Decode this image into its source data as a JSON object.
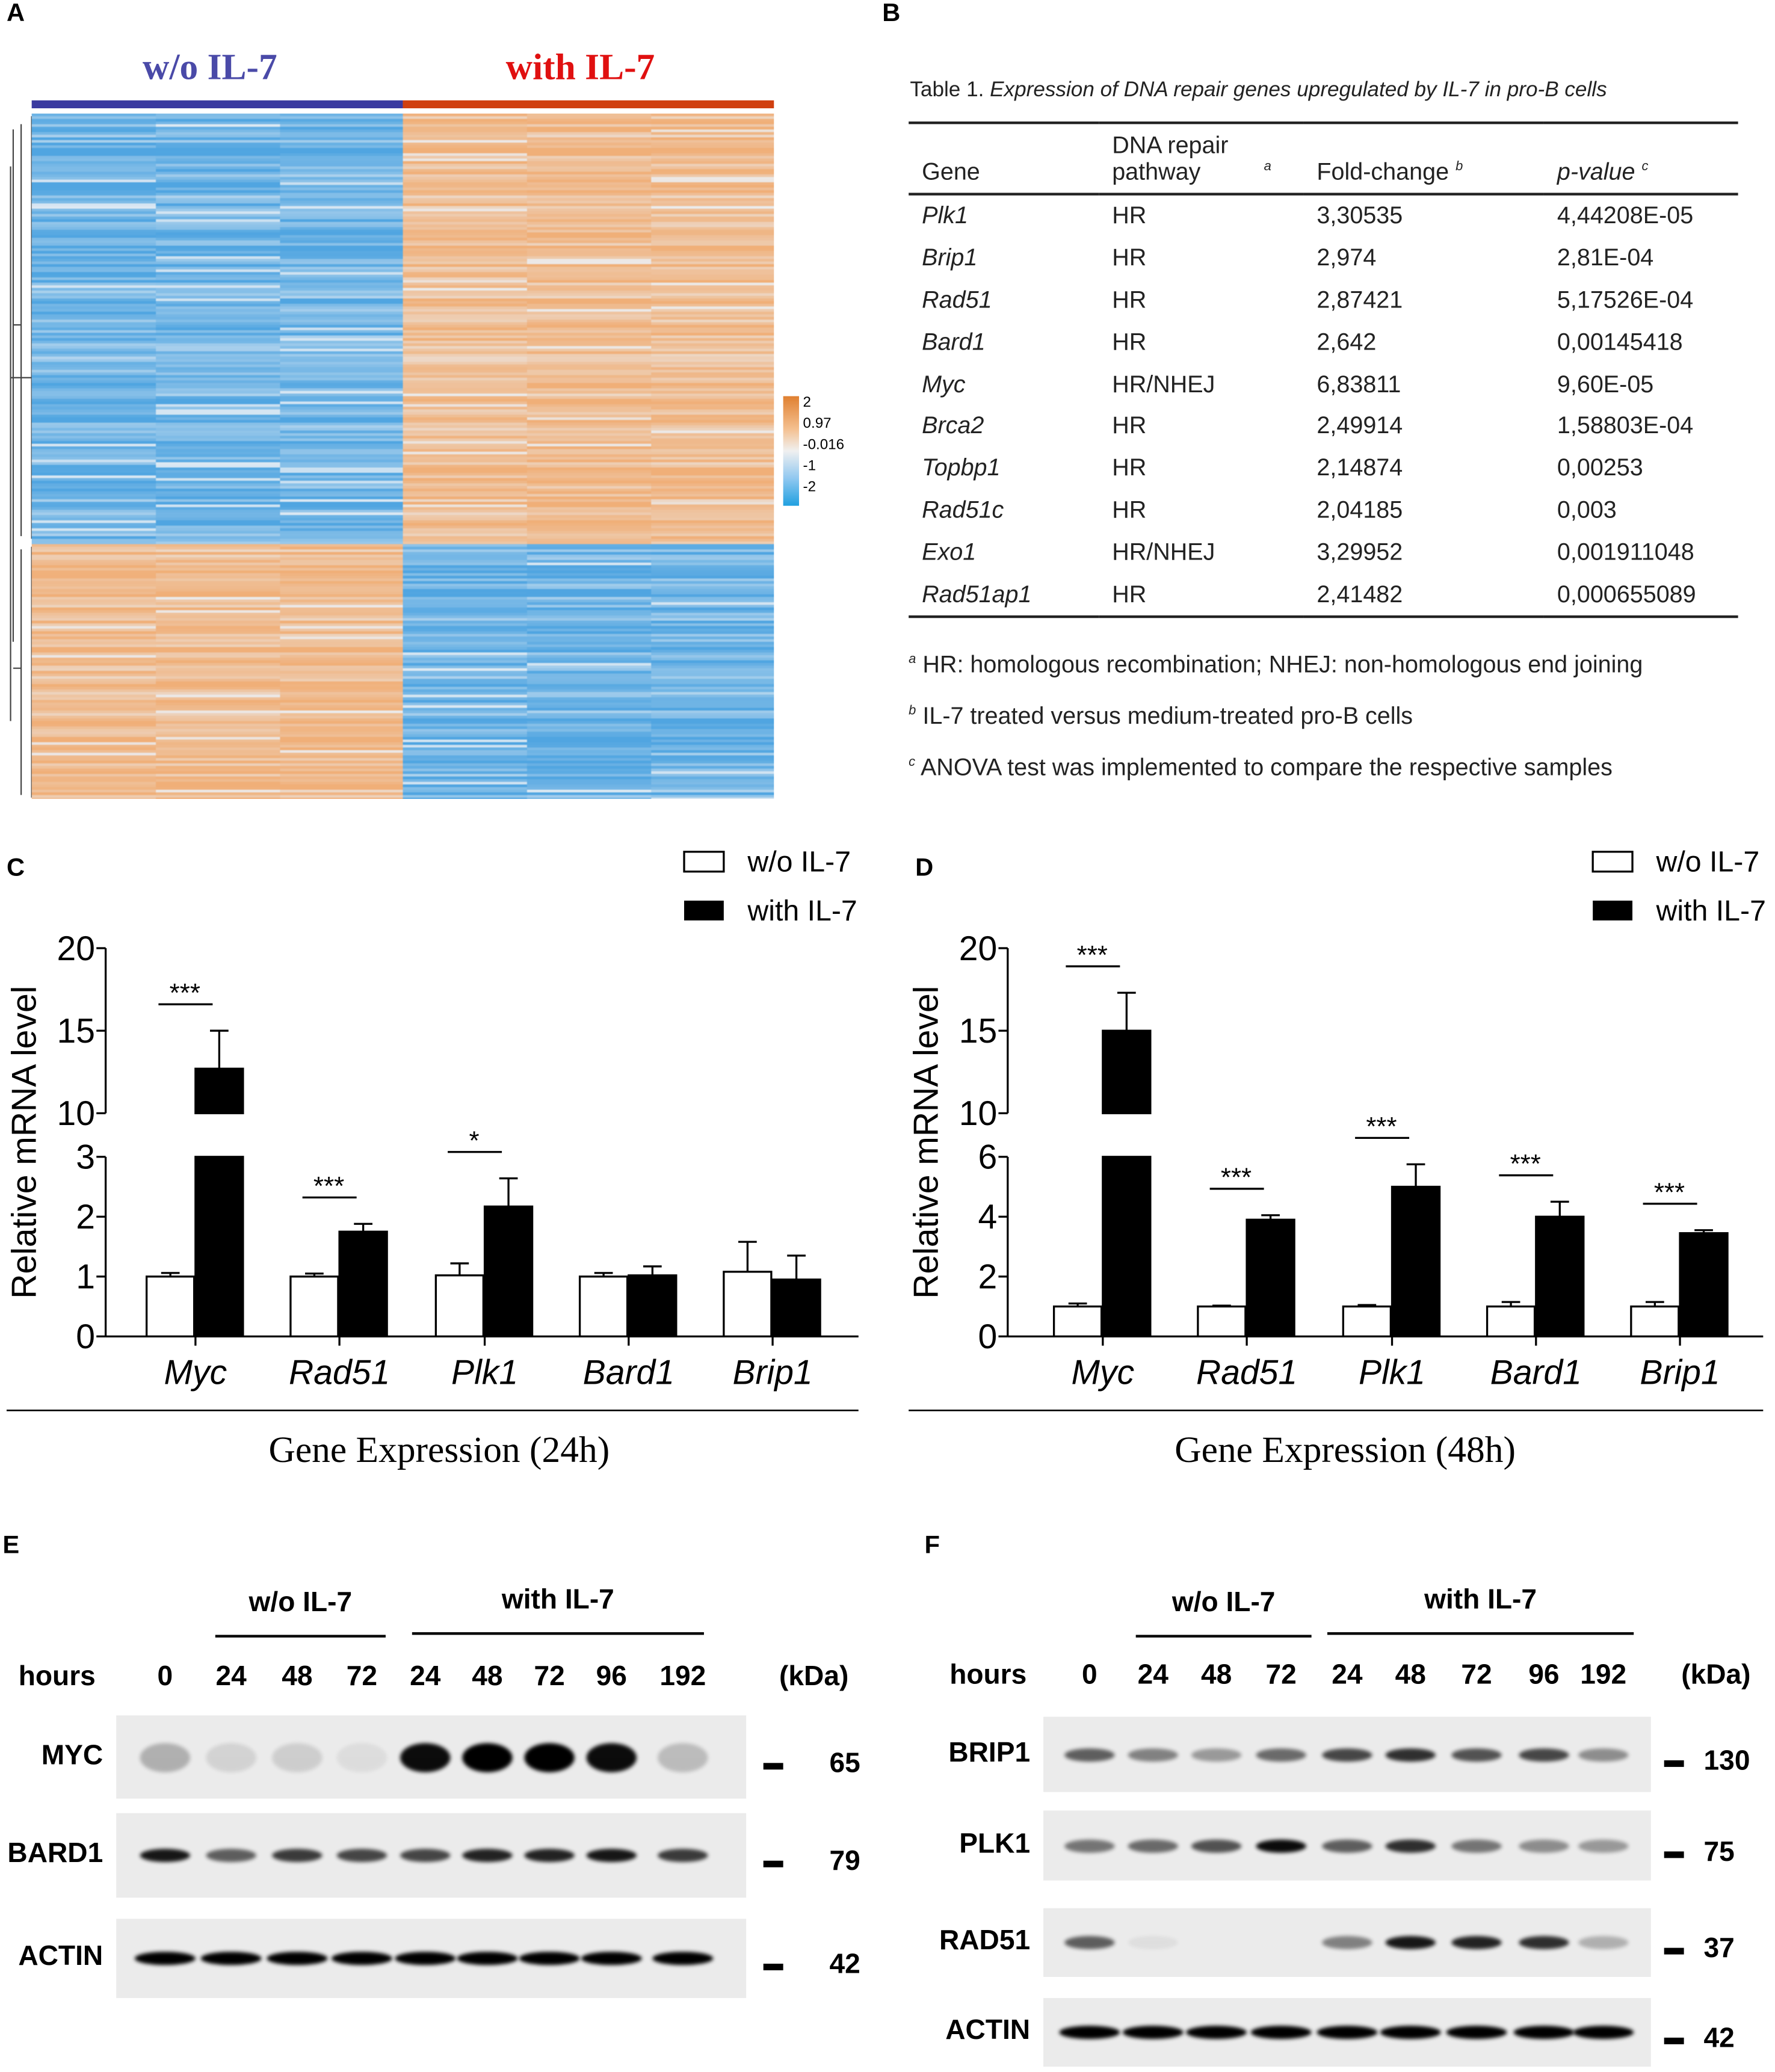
{
  "panels": {
    "A": "A",
    "B": "B",
    "C": "C",
    "D": "D",
    "E": "E",
    "F": "F"
  },
  "heatmap": {
    "group_labels": [
      "w/o IL-7",
      "with IL-7"
    ],
    "group_colors": [
      "#4a4aa8",
      "#e01010"
    ],
    "colorbar_ticks": [
      "2",
      "0.97",
      "-0.016",
      "-1",
      "-2"
    ],
    "low_color": "#3fa0e0",
    "mid_color": "#f0f0f0",
    "high_color": "#f0a060"
  },
  "table": {
    "caption_prefix": "Table 1. ",
    "caption": "Expression of DNA repair genes upregulated by IL-7 in pro-B cells",
    "headers": [
      "Gene",
      "DNA repair pathway",
      "Fold-change",
      "p-value"
    ],
    "header_sups": [
      "",
      "a",
      "b",
      "c"
    ],
    "rows": [
      [
        "Plk1",
        "HR",
        "3,30535",
        "4,44208E-05"
      ],
      [
        "Brip1",
        "HR",
        "2,974",
        "2,81E-04"
      ],
      [
        "Rad51",
        "HR",
        "2,87421",
        "5,17526E-04"
      ],
      [
        "Bard1",
        "HR",
        "2,642",
        "0,00145418"
      ],
      [
        "Myc",
        "HR/NHEJ",
        "6,83811",
        "9,60E-05"
      ],
      [
        "Brca2",
        "HR",
        "2,49914",
        "1,58803E-04"
      ],
      [
        "Topbp1",
        "HR",
        "2,14874",
        "0,00253"
      ],
      [
        "Rad51c",
        "HR",
        "2,04185",
        "0,003"
      ],
      [
        "Exo1",
        "HR/NHEJ",
        "3,29952",
        "0,001911048"
      ],
      [
        "Rad51ap1",
        "HR",
        "2,41482",
        "0,000655089"
      ]
    ],
    "footnotes": [
      {
        "sup": "a",
        "text": "HR: homologous recombination; NHEJ: non-homologous end joining"
      },
      {
        "sup": "b",
        "text": "IL-7 treated versus medium-treated pro-B cells"
      },
      {
        "sup": "c",
        "text": "ANOVA test was implemented to compare the respective samples"
      }
    ]
  },
  "chart_data": [
    {
      "type": "bar",
      "title": "Gene Expression (24h)",
      "ylabel": "Relative mRNA level",
      "categories": [
        "Myc",
        "Rad51",
        "Plk1",
        "Bard1",
        "Brip1"
      ],
      "legend": [
        "w/o IL-7",
        "with IL-7"
      ],
      "legend_placement": "top-right",
      "broken_axis": {
        "lower": [
          0,
          3
        ],
        "upper": [
          10,
          20
        ],
        "lower_ticks": [
          "0",
          "1",
          "2",
          "3"
        ],
        "upper_ticks": [
          "10",
          "15",
          "20"
        ]
      },
      "series": [
        {
          "name": "w/o IL-7",
          "values": [
            1.0,
            1.0,
            1.02,
            1.0,
            1.08
          ],
          "errors": [
            0.06,
            0.05,
            0.2,
            0.06,
            0.5
          ]
        },
        {
          "name": "with IL-7",
          "values": [
            12.7,
            1.75,
            2.17,
            1.02,
            0.95
          ],
          "errors": [
            2.3,
            0.13,
            0.47,
            0.15,
            0.4
          ]
        }
      ],
      "significance": [
        "***",
        "***",
        "*",
        "",
        ""
      ]
    },
    {
      "type": "bar",
      "title": "Gene Expression (48h)",
      "ylabel": "Relative mRNA level",
      "categories": [
        "Myc",
        "Rad51",
        "Plk1",
        "Bard1",
        "Brip1"
      ],
      "legend": [
        "w/o IL-7",
        "with IL-7"
      ],
      "legend_placement": "top-right",
      "broken_axis": {
        "lower": [
          0,
          6
        ],
        "upper": [
          10,
          20
        ],
        "lower_ticks": [
          "0",
          "2",
          "4",
          "6"
        ],
        "upper_ticks": [
          "10",
          "15",
          "20"
        ]
      },
      "series": [
        {
          "name": "w/o IL-7",
          "values": [
            1.0,
            1.0,
            1.0,
            1.0,
            1.0
          ],
          "errors": [
            0.1,
            0.03,
            0.05,
            0.15,
            0.15
          ]
        },
        {
          "name": "with IL-7",
          "values": [
            15.0,
            3.9,
            5.0,
            4.0,
            3.45
          ],
          "errors": [
            2.3,
            0.15,
            0.75,
            0.5,
            0.1
          ]
        }
      ],
      "significance": [
        "***",
        "***",
        "***",
        "***",
        "***"
      ]
    }
  ],
  "blots": [
    {
      "groups": [
        "w/o IL-7",
        "with IL-7"
      ],
      "hours_label": "hours",
      "kda_label": "(kDa)",
      "hours": [
        "0",
        "24",
        "48",
        "72",
        "24",
        "48",
        "72",
        "96",
        "192"
      ],
      "rows": [
        {
          "name": "MYC",
          "kda": "65",
          "intensity": [
            0.25,
            0.1,
            0.12,
            0.06,
            0.95,
            1.0,
            1.0,
            0.95,
            0.2
          ]
        },
        {
          "name": "BARD1",
          "kda": "79",
          "intensity": [
            0.9,
            0.6,
            0.75,
            0.7,
            0.7,
            0.85,
            0.85,
            0.9,
            0.75
          ]
        },
        {
          "name": "ACTIN",
          "kda": "42",
          "intensity": [
            1,
            1,
            1,
            1,
            1,
            1,
            1,
            1,
            1
          ]
        }
      ]
    },
    {
      "groups": [
        "w/o IL-7",
        "with IL-7"
      ],
      "hours_label": "hours",
      "kda_label": "(kDa)",
      "hours": [
        "0",
        "24",
        "48",
        "72",
        "24",
        "48",
        "72",
        "96",
        "192"
      ],
      "rows": [
        {
          "name": "BRIP1",
          "kda": "130",
          "intensity": [
            0.6,
            0.45,
            0.35,
            0.55,
            0.7,
            0.8,
            0.65,
            0.7,
            0.4
          ]
        },
        {
          "name": "PLK1",
          "kda": "75",
          "intensity": [
            0.5,
            0.55,
            0.65,
            0.95,
            0.6,
            0.8,
            0.5,
            0.4,
            0.35
          ]
        },
        {
          "name": "RAD51",
          "kda": "37",
          "intensity": [
            0.6,
            0.05,
            0,
            0,
            0.45,
            0.9,
            0.85,
            0.8,
            0.25
          ]
        },
        {
          "name": "ACTIN",
          "kda": "42",
          "intensity": [
            1,
            1,
            1,
            1,
            1,
            1,
            1,
            1,
            1
          ]
        }
      ]
    }
  ]
}
